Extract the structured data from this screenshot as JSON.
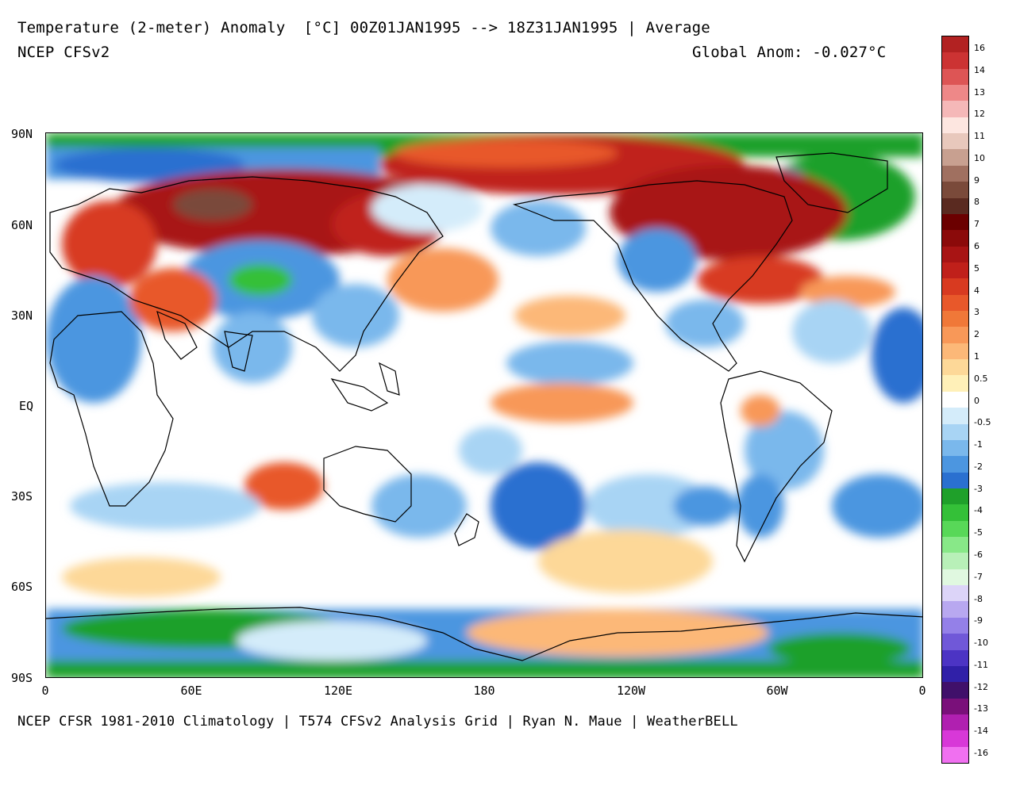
{
  "header": {
    "title": "Temperature (2-meter) Anomaly  [°C] 00Z01JAN1995 --> 18Z31JAN1995 | Average",
    "model": "NCEP CFSv2",
    "global_anomaly": "Global Anom: -0.027°C"
  },
  "footer": {
    "credit": "NCEP CFSR 1981-2010 Climatology | T574 CFSv2 Analysis Grid | Ryan N. Maue | WeatherBELL"
  },
  "axes": {
    "lat_labels": [
      "90N",
      "60N",
      "30N",
      "EQ",
      "30S",
      "60S",
      "90S"
    ],
    "lon_labels": [
      "0",
      "60E",
      "120E",
      "180",
      "120W",
      "60W",
      "0"
    ]
  },
  "colorbar": {
    "labels": [
      "16",
      "14",
      "13",
      "12",
      "11",
      "10",
      "9",
      "8",
      "7",
      "6",
      "5",
      "4",
      "3",
      "2",
      "1",
      "0.5",
      "0",
      "-0.5",
      "-1",
      "-2",
      "-3",
      "-4",
      "-5",
      "-6",
      "-7",
      "-8",
      "-9",
      "-10",
      "-11",
      "-12",
      "-13",
      "-14",
      "-16"
    ],
    "colors": [
      "#b22222",
      "#cc3333",
      "#dd5555",
      "#ee8888",
      "#f5b8b8",
      "#fde6e0",
      "#e8c8bc",
      "#c8a090",
      "#a07060",
      "#7a4a3a",
      "#5a2a20",
      "#6b0000",
      "#8b0a0a",
      "#a81414",
      "#c0201a",
      "#d83a20",
      "#e8582a",
      "#f07838",
      "#f89858",
      "#fcb878",
      "#fdd898",
      "#fff0b8",
      "#ffffff",
      "#d4ecfa",
      "#a8d4f4",
      "#7ab8ec",
      "#4c96e0",
      "#2a70d0",
      "#1fa02a",
      "#34c038",
      "#58d858",
      "#88e888",
      "#b8f0b8",
      "#e0f8e0",
      "#dcd4f8",
      "#b8a8f0",
      "#9480e8",
      "#7058d8",
      "#4c34c4",
      "#3020a8",
      "#40106a",
      "#7a107a",
      "#b020b0",
      "#d838d8",
      "#f070f0"
    ]
  }
}
